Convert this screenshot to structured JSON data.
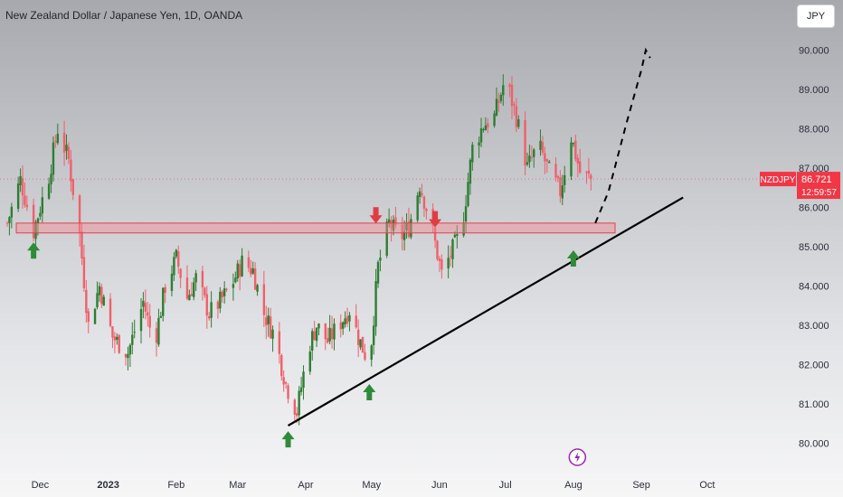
{
  "header": {
    "title": "New Zealand Dollar / Japanese Yen, 1D, OANDA",
    "currency_button": "JPY"
  },
  "last_price_tag": {
    "symbol": "NZDJPY",
    "price": "86.721",
    "countdown": "12:59:57"
  },
  "colors": {
    "up": "#2e7d32",
    "down": "#f0606a",
    "support_zone": "#f28a92",
    "trendline": "#000000",
    "price_tag": "#f23645",
    "arrow_up": "#2e8b3a",
    "arrow_down": "#e03c44",
    "lightning": "#9c27b0"
  },
  "chart_data": {
    "type": "candlestick",
    "title": "New Zealand Dollar / Japanese Yen, 1D, OANDA",
    "y_ticks": [
      "80.000",
      "81.000",
      "82.000",
      "83.000",
      "84.000",
      "85.000",
      "86.000",
      "87.000",
      "88.000",
      "89.000",
      "90.000"
    ],
    "ylim": [
      79.6,
      90.4
    ],
    "x_ticks": [
      {
        "label": "Dec",
        "date": "2022-12-01"
      },
      {
        "label": "2023",
        "date": "2023-01-01"
      },
      {
        "label": "Feb",
        "date": "2023-02-01"
      },
      {
        "label": "Mar",
        "date": "2023-03-01"
      },
      {
        "label": "Apr",
        "date": "2023-04-01"
      },
      {
        "label": "May",
        "date": "2023-05-01"
      },
      {
        "label": "Jun",
        "date": "2023-06-01"
      },
      {
        "label": "Jul",
        "date": "2023-07-01"
      },
      {
        "label": "Aug",
        "date": "2023-08-01"
      },
      {
        "label": "Sep",
        "date": "2023-09-01"
      },
      {
        "label": "Oct",
        "date": "2023-10-01"
      }
    ],
    "xlim": [
      "2022-11-16",
      "2023-10-20"
    ],
    "price_path": [
      [
        "2022-11-16",
        85.6
      ],
      [
        "2022-11-22",
        86.7
      ],
      [
        "2022-11-28",
        85.4
      ],
      [
        "2022-12-05",
        86.8
      ],
      [
        "2022-12-09",
        88.0
      ],
      [
        "2022-12-14",
        87.2
      ],
      [
        "2022-12-19",
        85.3
      ],
      [
        "2022-12-23",
        83.0
      ],
      [
        "2022-12-28",
        84.0
      ],
      [
        "2023-01-03",
        82.7
      ],
      [
        "2023-01-10",
        82.3
      ],
      [
        "2023-01-17",
        83.6
      ],
      [
        "2023-01-22",
        82.5
      ],
      [
        "2023-01-27",
        84.0
      ],
      [
        "2023-02-01",
        84.7
      ],
      [
        "2023-02-06",
        83.7
      ],
      [
        "2023-02-10",
        84.2
      ],
      [
        "2023-02-16",
        83.3
      ],
      [
        "2023-02-21",
        83.6
      ],
      [
        "2023-02-26",
        84.0
      ],
      [
        "2023-03-03",
        84.6
      ],
      [
        "2023-03-08",
        84.4
      ],
      [
        "2023-03-13",
        83.3
      ],
      [
        "2023-03-18",
        82.7
      ],
      [
        "2023-03-23",
        81.5
      ],
      [
        "2023-03-28",
        80.8
      ],
      [
        "2023-04-02",
        82.4
      ],
      [
        "2023-04-06",
        83.0
      ],
      [
        "2023-04-11",
        82.6
      ],
      [
        "2023-04-16",
        83.0
      ],
      [
        "2023-04-21",
        83.4
      ],
      [
        "2023-04-25",
        82.7
      ],
      [
        "2023-04-30",
        82.0
      ],
      [
        "2023-05-04",
        84.5
      ],
      [
        "2023-05-09",
        85.6
      ],
      [
        "2023-05-14",
        85.2
      ],
      [
        "2023-05-18",
        85.5
      ],
      [
        "2023-05-23",
        86.6
      ],
      [
        "2023-05-28",
        85.6
      ],
      [
        "2023-06-02",
        84.3
      ],
      [
        "2023-06-06",
        84.8
      ],
      [
        "2023-06-11",
        85.4
      ],
      [
        "2023-06-16",
        87.5
      ],
      [
        "2023-06-21",
        88.1
      ],
      [
        "2023-06-26",
        88.3
      ],
      [
        "2023-07-01",
        89.3
      ],
      [
        "2023-07-06",
        88.3
      ],
      [
        "2023-07-11",
        87.0
      ],
      [
        "2023-07-16",
        87.6
      ],
      [
        "2023-07-21",
        86.9
      ],
      [
        "2023-07-26",
        86.4
      ],
      [
        "2023-07-31",
        87.8
      ],
      [
        "2023-08-04",
        86.9
      ],
      [
        "2023-08-09",
        86.72
      ]
    ],
    "annotations": {
      "support_zone": {
        "low": 85.35,
        "high": 85.6,
        "from": "2022-11-16",
        "to": "2023-08-20"
      },
      "trendline": {
        "from": [
          "2023-03-24",
          80.45
        ],
        "to": [
          "2023-09-20",
          86.25
        ]
      },
      "projection": [
        [
          "2023-08-11",
          85.6
        ],
        [
          "2023-08-17",
          86.4
        ],
        [
          "2023-08-25",
          88.1
        ],
        [
          "2023-09-01",
          89.5
        ],
        [
          "2023-09-03",
          90.0
        ],
        [
          "2023-09-05",
          89.8
        ]
      ],
      "up_arrows": [
        [
          "2022-11-28",
          85.2
        ],
        [
          "2023-03-24",
          80.4
        ],
        [
          "2023-04-30",
          81.6
        ],
        [
          "2023-08-01",
          85.0
        ]
      ],
      "down_arrows": [
        [
          "2023-05-03",
          85.5
        ],
        [
          "2023-05-30",
          85.4
        ]
      ],
      "event_marker_date": "2023-08-09"
    }
  }
}
